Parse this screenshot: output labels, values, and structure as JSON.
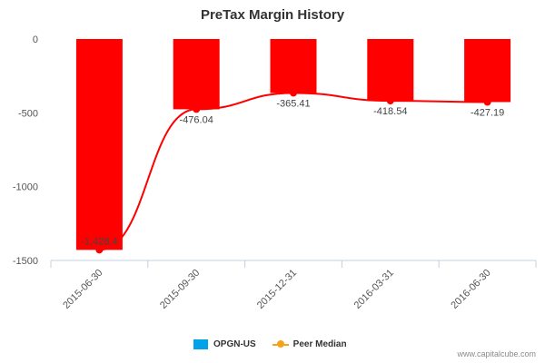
{
  "chart_data": {
    "type": "bar",
    "title": "PreTax Margin History",
    "categories": [
      "2015-06-30",
      "2015-09-30",
      "2015-12-31",
      "2016-03-31",
      "2016-06-30"
    ],
    "series": [
      {
        "name": "OPGN-US",
        "type": "bar",
        "color": "#FF0000",
        "values": [
          -1428.4,
          -476.04,
          -365.41,
          -418.54,
          -427.19
        ],
        "labels": [
          "-1,428.4",
          "-476.04",
          "-365.41",
          "-418.54",
          "-427.19"
        ]
      },
      {
        "name": "Peer Median",
        "type": "line",
        "color": "#FF0000",
        "values": [
          -1428.4,
          -476.04,
          -365.41,
          -418.54,
          -427.19
        ]
      }
    ],
    "ylim": [
      -1500,
      0
    ],
    "yticks": [
      0,
      -500,
      -1000,
      -1500
    ],
    "ytick_labels": [
      "0",
      "-500",
      "-1000",
      "-1500"
    ],
    "xlabel": "",
    "ylabel": "",
    "legend_position": "bottom",
    "grid": false
  },
  "legend": {
    "bar_label": "OPGN-US",
    "line_label": "Peer Median",
    "bar_color": "#00A2E8",
    "line_color": "#F7A21B"
  },
  "credit": "www.capitalcube.com"
}
